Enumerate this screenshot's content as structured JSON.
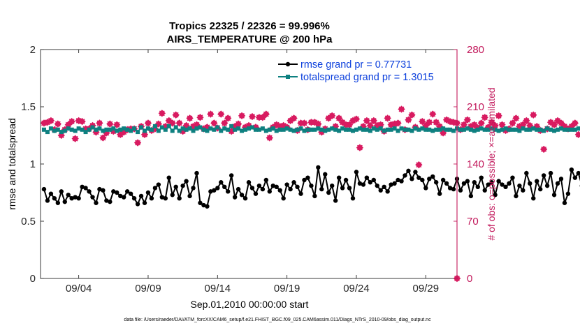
{
  "chart_data": {
    "type": "line",
    "title": "Tropics 22325 / 22326 = 99.996%",
    "subtitle": "AIRS_TEMPERATURE @ 200 hPa",
    "xlabel": "Sep.01,2010 00:00:00 start",
    "ylabel": "rmse and totalspread",
    "y2label": "# of obs: o=possible; ×=assimilated",
    "footer": "data file: /Users/raeder/DAI/ATM_forcXX/CAM6_setup/f.e21.FHIST_BGC.f09_025.CAM6assim.011/Diags_NTrS_2010-09/obs_diag_output.nc",
    "xlim": [
      0.75,
      30.75
    ],
    "x_ticks": [
      3.5,
      8.5,
      13.5,
      18.5,
      23.5,
      28.5
    ],
    "x_tick_labels": [
      "09/04",
      "09/09",
      "09/14",
      "09/19",
      "09/24",
      "09/29"
    ],
    "ylim": [
      0,
      2
    ],
    "y_ticks": [
      0,
      0.5,
      1,
      1.5,
      2
    ],
    "y_tick_labels": [
      "0",
      "0.5",
      "1",
      "1.5",
      "2"
    ],
    "y2lim": [
      0,
      280
    ],
    "y2_ticks": [
      0,
      70,
      140,
      210,
      280
    ],
    "y2_tick_labels": [
      "0",
      "70",
      "140",
      "210",
      "280"
    ],
    "grid": false,
    "legend_position": "top-right",
    "colors": {
      "rmse": "#000000",
      "spread": "#0e8080",
      "obs_possible": "#d81b60",
      "obs_assimilated": "#d81b60",
      "axis_right": "#c2185b",
      "legend_text": "#0b3fdc"
    },
    "series": [
      {
        "name": "rmse grand pr = 0.77731",
        "axis": "left",
        "x0": 1,
        "dx": 0.25,
        "values": [
          0.78,
          0.68,
          0.74,
          0.7,
          0.66,
          0.76,
          0.67,
          0.73,
          0.7,
          0.71,
          0.7,
          0.8,
          0.79,
          0.76,
          0.71,
          0.66,
          0.78,
          0.77,
          0.68,
          0.67,
          0.76,
          0.75,
          0.72,
          0.71,
          0.76,
          0.74,
          0.7,
          0.65,
          0.72,
          0.66,
          0.75,
          0.7,
          0.79,
          0.82,
          0.71,
          0.7,
          0.88,
          0.73,
          0.8,
          0.7,
          0.81,
          0.85,
          0.72,
          0.79,
          0.92,
          0.66,
          0.64,
          0.63,
          0.76,
          0.77,
          0.79,
          0.84,
          0.8,
          0.76,
          0.9,
          0.71,
          0.78,
          0.73,
          0.7,
          0.84,
          0.79,
          0.74,
          0.81,
          0.78,
          0.86,
          0.76,
          0.81,
          0.8,
          0.77,
          0.7,
          0.82,
          0.78,
          0.84,
          0.8,
          0.74,
          0.86,
          0.88,
          0.81,
          0.72,
          0.97,
          0.78,
          0.91,
          0.75,
          0.81,
          0.68,
          0.88,
          0.79,
          0.86,
          0.79,
          0.7,
          0.93,
          0.83,
          0.82,
          0.88,
          0.84,
          0.86,
          0.81,
          0.77,
          0.8,
          0.76,
          0.82,
          0.83,
          0.86,
          0.85,
          0.9,
          0.94,
          0.87,
          0.93,
          0.88,
          0.86,
          0.79,
          0.87,
          0.89,
          0.84,
          0.74,
          0.86,
          0.83,
          0.79,
          0.78,
          0.87,
          0.77,
          0.83,
          0.85,
          0.72,
          0.84,
          0.8,
          0.88,
          0.77,
          0.82,
          0.84,
          0.73,
          0.85,
          0.82,
          0.8,
          0.83,
          0.88,
          0.72,
          0.81,
          0.77,
          0.92,
          0.83,
          0.7,
          0.85,
          0.78,
          0.9,
          0.81,
          0.92,
          0.73,
          0.83,
          0.87,
          0.66,
          0.74,
          0.95,
          0.88,
          0.92,
          0.81,
          0.85,
          0.82,
          0.8
        ]
      },
      {
        "name": "totalspread grand pr = 1.3015",
        "axis": "left",
        "x0": 1,
        "dx": 0.25,
        "values": [
          1.3,
          1.28,
          1.31,
          1.29,
          1.3,
          1.28,
          1.29,
          1.31,
          1.3,
          1.29,
          1.31,
          1.3,
          1.28,
          1.3,
          1.32,
          1.3,
          1.31,
          1.29,
          1.3,
          1.3,
          1.31,
          1.29,
          1.3,
          1.31,
          1.3,
          1.29,
          1.31,
          1.28,
          1.32,
          1.29,
          1.31,
          1.3,
          1.33,
          1.29,
          1.32,
          1.3,
          1.33,
          1.29,
          1.32,
          1.29,
          1.31,
          1.3,
          1.31,
          1.29,
          1.31,
          1.32,
          1.3,
          1.29,
          1.31,
          1.3,
          1.32,
          1.29,
          1.31,
          1.3,
          1.33,
          1.3,
          1.31,
          1.29,
          1.3,
          1.31,
          1.32,
          1.3,
          1.3,
          1.31,
          1.29,
          1.3,
          1.31,
          1.29,
          1.3,
          1.3,
          1.31,
          1.3,
          1.29,
          1.3,
          1.31,
          1.29,
          1.3,
          1.3,
          1.3,
          1.31,
          1.3,
          1.29,
          1.3,
          1.31,
          1.3,
          1.29,
          1.31,
          1.3,
          1.3,
          1.29,
          1.3,
          1.31,
          1.3,
          1.3,
          1.29,
          1.31,
          1.3,
          1.31,
          1.29,
          1.3,
          1.3,
          1.31,
          1.29,
          1.31,
          1.3,
          1.3,
          1.29,
          1.31,
          1.3,
          1.31,
          1.3,
          1.3,
          1.29,
          1.3,
          1.3,
          1.31,
          1.3,
          1.3,
          1.29,
          1.31,
          1.3,
          1.3,
          1.31,
          1.3,
          1.29,
          1.3,
          1.31,
          1.3,
          1.3,
          1.31,
          1.3,
          1.29,
          1.3,
          1.31,
          1.3,
          1.3,
          1.3,
          1.29,
          1.31,
          1.3,
          1.3,
          1.31,
          1.3,
          1.3,
          1.29,
          1.31,
          1.3,
          1.29,
          1.3,
          1.31,
          1.3,
          1.3,
          1.3,
          1.3,
          1.31,
          1.3,
          1.3
        ]
      },
      {
        "name": "obs possible",
        "axis": "right",
        "marker": "diamond",
        "x0": 1,
        "dx": 0.25,
        "values": [
          190,
          191,
          193,
          182,
          189,
          175,
          182,
          188,
          192,
          171,
          193,
          192,
          183,
          183,
          187,
          179,
          190,
          172,
          178,
          189,
          180,
          188,
          176,
          179,
          182,
          183,
          183,
          166,
          186,
          176,
          190,
          181,
          183,
          189,
          202,
          186,
          193,
          190,
          200,
          190,
          180,
          187,
          196,
          186,
          188,
          197,
          183,
          185,
          201,
          190,
          184,
          201,
          190,
          196,
          180,
          186,
          189,
          199,
          185,
          187,
          198,
          185,
          197,
          197,
          201,
          172,
          185,
          188,
          186,
          187,
          185,
          193,
          196,
          181,
          190,
          190,
          182,
          191,
          191,
          189,
          179,
          183,
          196,
          199,
          186,
          196,
          191,
          188,
          188,
          193,
          195,
          160,
          186,
          193,
          187,
          193,
          187,
          188,
          180,
          196,
          188,
          189,
          190,
          207,
          182,
          194,
          200,
          185,
          139,
          192,
          187,
          191,
          201,
          191,
          186,
          178,
          194,
          192,
          191,
          190,
          182,
          188,
          194,
          186,
          188,
          184,
          190,
          197,
          185,
          191,
          187,
          199,
          188,
          181,
          183,
          190,
          196,
          186,
          188,
          193,
          187,
          200,
          186,
          181,
          158,
          183,
          191,
          188,
          193,
          190,
          186,
          183,
          186,
          190,
          176
        ]
      },
      {
        "name": "obs assimilated",
        "axis": "right",
        "marker": "x",
        "x0": 1,
        "dx": 0.25,
        "values": [
          190,
          191,
          193,
          182,
          189,
          175,
          182,
          188,
          192,
          171,
          193,
          192,
          183,
          183,
          187,
          179,
          190,
          172,
          178,
          189,
          180,
          188,
          176,
          179,
          182,
          183,
          183,
          166,
          186,
          176,
          190,
          181,
          183,
          189,
          202,
          186,
          193,
          190,
          200,
          190,
          180,
          187,
          196,
          186,
          188,
          197,
          183,
          185,
          201,
          190,
          184,
          201,
          190,
          196,
          180,
          186,
          189,
          199,
          185,
          187,
          198,
          185,
          197,
          197,
          201,
          172,
          185,
          188,
          186,
          187,
          185,
          193,
          196,
          181,
          190,
          190,
          182,
          191,
          191,
          189,
          179,
          183,
          196,
          199,
          186,
          196,
          191,
          188,
          188,
          193,
          195,
          160,
          186,
          193,
          187,
          193,
          187,
          188,
          180,
          196,
          188,
          189,
          190,
          207,
          182,
          194,
          200,
          185,
          139,
          192,
          187,
          191,
          201,
          191,
          186,
          178,
          194,
          192,
          191,
          190,
          182,
          188,
          194,
          186,
          188,
          184,
          190,
          197,
          185,
          191,
          187,
          199,
          188,
          181,
          183,
          190,
          196,
          186,
          188,
          193,
          187,
          200,
          186,
          181,
          158,
          183,
          191,
          188,
          193,
          190,
          186,
          183,
          186,
          190,
          176
        ]
      }
    ],
    "extra_points": [
      {
        "series": "obs possible",
        "x": 30.75,
        "y": 0
      }
    ]
  }
}
